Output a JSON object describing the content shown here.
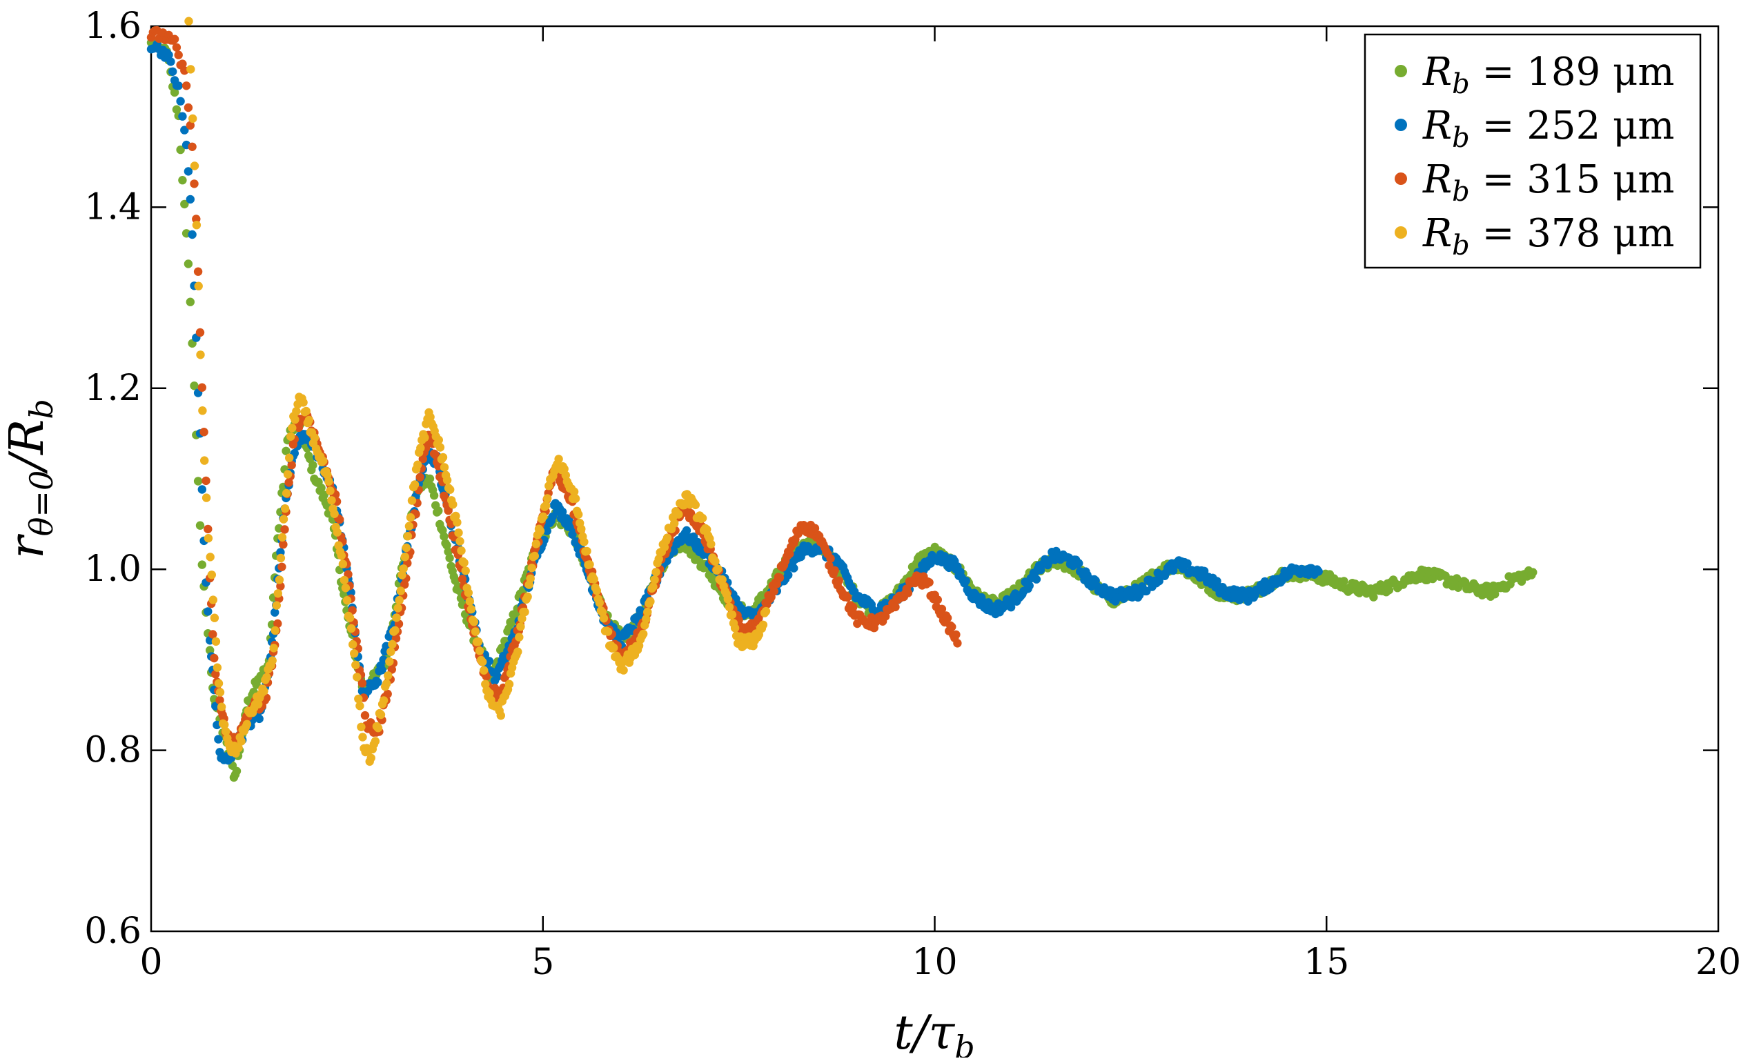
{
  "chart_data": {
    "type": "scatter",
    "xlabel": "t/τ_b",
    "ylabel": "r_{θ=0}/R_b",
    "xlim": [
      0,
      20
    ],
    "ylim": [
      0.6,
      1.6
    ],
    "xticks": [
      0,
      5,
      10,
      15,
      20
    ],
    "xtick_labels": [
      "0",
      "5",
      "10",
      "15",
      "20"
    ],
    "yticks": [
      0.6,
      0.8,
      1.0,
      1.2,
      1.4,
      1.6
    ],
    "ytick_labels": [
      "0.6",
      "0.8",
      "1.0",
      "1.2",
      "1.4",
      "1.6"
    ],
    "grid": false,
    "legend_position": "top-right",
    "series": [
      {
        "name": "R_b = 189 μm",
        "legend": {
          "symbol": "R",
          "sub": "b",
          "value": "= 189 μm"
        },
        "color": "#77ac30",
        "t_end": 17.65,
        "points": [
          [
            0.0,
            1.58
          ],
          [
            0.2,
            1.57
          ],
          [
            0.35,
            1.5
          ],
          [
            0.5,
            1.3
          ],
          [
            0.65,
            1.0
          ],
          [
            0.8,
            0.86
          ],
          [
            0.95,
            0.81
          ],
          [
            1.07,
            0.77
          ],
          [
            1.2,
            0.84
          ],
          [
            1.35,
            0.88
          ],
          [
            1.5,
            0.89
          ],
          [
            1.6,
            1.02
          ],
          [
            1.75,
            1.15
          ],
          [
            1.88,
            1.16
          ],
          [
            2.1,
            1.1
          ],
          [
            2.3,
            1.06
          ],
          [
            2.5,
            0.95
          ],
          [
            2.7,
            0.87
          ],
          [
            2.85,
            0.88
          ],
          [
            3.0,
            0.9
          ],
          [
            3.2,
            1.0
          ],
          [
            3.4,
            1.09
          ],
          [
            3.55,
            1.1
          ],
          [
            3.7,
            1.05
          ],
          [
            3.9,
            0.98
          ],
          [
            4.1,
            0.93
          ],
          [
            4.35,
            0.88
          ],
          [
            4.6,
            0.94
          ],
          [
            4.9,
            1.02
          ],
          [
            5.15,
            1.06
          ],
          [
            5.4,
            1.04
          ],
          [
            5.6,
            0.99
          ],
          [
            5.85,
            0.94
          ],
          [
            6.05,
            0.92
          ],
          [
            6.3,
            0.96
          ],
          [
            6.6,
            1.02
          ],
          [
            6.8,
            1.03
          ],
          [
            7.1,
            1.0
          ],
          [
            7.4,
            0.96
          ],
          [
            7.65,
            0.95
          ],
          [
            7.9,
            0.98
          ],
          [
            8.2,
            1.02
          ],
          [
            8.45,
            1.03
          ],
          [
            8.7,
            1.01
          ],
          [
            9.0,
            0.97
          ],
          [
            9.25,
            0.95
          ],
          [
            9.5,
            0.97
          ],
          [
            9.8,
            1.01
          ],
          [
            10.0,
            1.02
          ],
          [
            10.3,
            1.0
          ],
          [
            10.55,
            0.97
          ],
          [
            10.8,
            0.96
          ],
          [
            11.1,
            0.98
          ],
          [
            11.3,
            1.0
          ],
          [
            11.55,
            1.01
          ],
          [
            11.8,
            1.0
          ],
          [
            12.05,
            0.98
          ],
          [
            12.3,
            0.965
          ],
          [
            12.6,
            0.98
          ],
          [
            12.9,
            1.0
          ],
          [
            13.1,
            1.005
          ],
          [
            13.35,
            0.99
          ],
          [
            13.6,
            0.975
          ],
          [
            13.9,
            0.97
          ],
          [
            14.2,
            0.98
          ],
          [
            14.45,
            0.995
          ],
          [
            14.7,
            0.995
          ],
          [
            15.0,
            0.99
          ],
          [
            15.3,
            0.98
          ],
          [
            15.6,
            0.975
          ],
          [
            15.9,
            0.985
          ],
          [
            16.2,
            0.995
          ],
          [
            16.5,
            0.99
          ],
          [
            16.8,
            0.98
          ],
          [
            17.1,
            0.975
          ],
          [
            17.4,
            0.99
          ],
          [
            17.65,
            0.995
          ]
        ]
      },
      {
        "name": "R_b = 252 μm",
        "legend": {
          "symbol": "R",
          "sub": "b",
          "value": "= 252 μm"
        },
        "color": "#0072bd",
        "t_end": 14.9,
        "points": [
          [
            0.0,
            1.58
          ],
          [
            0.2,
            1.57
          ],
          [
            0.35,
            1.53
          ],
          [
            0.45,
            1.47
          ],
          [
            0.52,
            1.38
          ],
          [
            0.6,
            1.2
          ],
          [
            0.7,
            0.98
          ],
          [
            0.8,
            0.87
          ],
          [
            0.88,
            0.79
          ],
          [
            0.97,
            0.79
          ],
          [
            1.05,
            0.8
          ],
          [
            1.25,
            0.83
          ],
          [
            1.4,
            0.84
          ],
          [
            1.55,
            0.92
          ],
          [
            1.7,
            1.07
          ],
          [
            1.85,
            1.14
          ],
          [
            2.0,
            1.15
          ],
          [
            2.15,
            1.12
          ],
          [
            2.35,
            1.08
          ],
          [
            2.55,
            0.97
          ],
          [
            2.7,
            0.86
          ],
          [
            2.9,
            0.88
          ],
          [
            3.1,
            0.94
          ],
          [
            3.3,
            1.04
          ],
          [
            3.5,
            1.13
          ],
          [
            3.65,
            1.12
          ],
          [
            3.8,
            1.06
          ],
          [
            4.0,
            0.99
          ],
          [
            4.2,
            0.91
          ],
          [
            4.4,
            0.88
          ],
          [
            4.65,
            0.93
          ],
          [
            4.9,
            1.01
          ],
          [
            5.15,
            1.07
          ],
          [
            5.35,
            1.05
          ],
          [
            5.6,
            0.99
          ],
          [
            5.8,
            0.94
          ],
          [
            6.0,
            0.92
          ],
          [
            6.25,
            0.95
          ],
          [
            6.55,
            1.01
          ],
          [
            6.8,
            1.04
          ],
          [
            7.05,
            1.02
          ],
          [
            7.3,
            0.99
          ],
          [
            7.55,
            0.95
          ],
          [
            7.75,
            0.95
          ],
          [
            8.0,
            0.98
          ],
          [
            8.3,
            1.02
          ],
          [
            8.5,
            1.025
          ],
          [
            8.75,
            1.01
          ],
          [
            9.0,
            0.97
          ],
          [
            9.25,
            0.955
          ],
          [
            9.5,
            0.965
          ],
          [
            9.75,
            0.99
          ],
          [
            10.0,
            1.015
          ],
          [
            10.25,
            1.005
          ],
          [
            10.5,
            0.97
          ],
          [
            10.75,
            0.955
          ],
          [
            11.0,
            0.965
          ],
          [
            11.3,
            0.995
          ],
          [
            11.5,
            1.015
          ],
          [
            11.75,
            1.01
          ],
          [
            12.0,
            0.985
          ],
          [
            12.3,
            0.97
          ],
          [
            12.6,
            0.975
          ],
          [
            12.9,
            0.995
          ],
          [
            13.1,
            1.005
          ],
          [
            13.4,
            0.995
          ],
          [
            13.7,
            0.975
          ],
          [
            14.0,
            0.97
          ],
          [
            14.3,
            0.985
          ],
          [
            14.6,
            1.0
          ],
          [
            14.9,
            1.0
          ]
        ]
      },
      {
        "name": "R_b = 315 μm",
        "legend": {
          "symbol": "R",
          "sub": "b",
          "value": "= 315 μm"
        },
        "color": "#d95319",
        "t_end": 10.3,
        "points": [
          [
            0.0,
            1.59
          ],
          [
            0.15,
            1.59
          ],
          [
            0.3,
            1.58
          ],
          [
            0.45,
            1.54
          ],
          [
            0.52,
            1.47
          ],
          [
            0.58,
            1.38
          ],
          [
            0.65,
            1.2
          ],
          [
            0.72,
            1.05
          ],
          [
            0.8,
            0.9
          ],
          [
            0.9,
            0.84
          ],
          [
            1.0,
            0.81
          ],
          [
            1.15,
            0.82
          ],
          [
            1.3,
            0.85
          ],
          [
            1.45,
            0.85
          ],
          [
            1.6,
            0.93
          ],
          [
            1.75,
            1.09
          ],
          [
            1.85,
            1.16
          ],
          [
            2.0,
            1.17
          ],
          [
            2.15,
            1.13
          ],
          [
            2.35,
            1.08
          ],
          [
            2.55,
            0.97
          ],
          [
            2.75,
            0.83
          ],
          [
            2.9,
            0.82
          ],
          [
            3.05,
            0.88
          ],
          [
            3.25,
            0.99
          ],
          [
            3.45,
            1.11
          ],
          [
            3.55,
            1.15
          ],
          [
            3.7,
            1.1
          ],
          [
            3.9,
            1.02
          ],
          [
            4.1,
            0.94
          ],
          [
            4.3,
            0.87
          ],
          [
            4.45,
            0.86
          ],
          [
            4.65,
            0.92
          ],
          [
            4.9,
            1.02
          ],
          [
            5.15,
            1.11
          ],
          [
            5.35,
            1.08
          ],
          [
            5.6,
            1.0
          ],
          [
            5.85,
            0.93
          ],
          [
            6.0,
            0.9
          ],
          [
            6.25,
            0.93
          ],
          [
            6.55,
            1.02
          ],
          [
            6.8,
            1.07
          ],
          [
            7.05,
            1.04
          ],
          [
            7.3,
            0.98
          ],
          [
            7.55,
            0.93
          ],
          [
            7.75,
            0.94
          ],
          [
            8.0,
            0.99
          ],
          [
            8.3,
            1.05
          ],
          [
            8.5,
            1.04
          ],
          [
            8.75,
            0.99
          ],
          [
            9.0,
            0.945
          ],
          [
            9.25,
            0.94
          ],
          [
            9.5,
            0.96
          ],
          [
            9.75,
            0.99
          ],
          [
            9.9,
            0.985
          ],
          [
            10.1,
            0.95
          ],
          [
            10.3,
            0.92
          ]
        ]
      },
      {
        "name": "R_b = 378 μm",
        "legend": {
          "symbol": "R",
          "sub": "b",
          "value": "= 378 μm"
        },
        "color": "#edb120",
        "t_end": 7.85,
        "points": [
          [
            0.48,
            1.6
          ],
          [
            0.52,
            1.52
          ],
          [
            0.56,
            1.44
          ],
          [
            0.6,
            1.33
          ],
          [
            0.64,
            1.2
          ],
          [
            0.68,
            1.12
          ],
          [
            0.72,
            1.05
          ],
          [
            0.78,
            0.98
          ],
          [
            0.85,
            0.89
          ],
          [
            0.92,
            0.83
          ],
          [
            1.0,
            0.8
          ],
          [
            1.1,
            0.8
          ],
          [
            1.25,
            0.84
          ],
          [
            1.4,
            0.86
          ],
          [
            1.55,
            0.9
          ],
          [
            1.7,
            1.06
          ],
          [
            1.8,
            1.16
          ],
          [
            1.9,
            1.19
          ],
          [
            2.05,
            1.15
          ],
          [
            2.25,
            1.1
          ],
          [
            2.45,
            1.0
          ],
          [
            2.6,
            0.9
          ],
          [
            2.7,
            0.81
          ],
          [
            2.8,
            0.79
          ],
          [
            3.0,
            0.87
          ],
          [
            3.2,
            0.99
          ],
          [
            3.4,
            1.12
          ],
          [
            3.55,
            1.17
          ],
          [
            3.7,
            1.13
          ],
          [
            3.9,
            1.05
          ],
          [
            4.1,
            0.95
          ],
          [
            4.3,
            0.86
          ],
          [
            4.45,
            0.84
          ],
          [
            4.65,
            0.9
          ],
          [
            4.9,
            1.02
          ],
          [
            5.1,
            1.1
          ],
          [
            5.2,
            1.12
          ],
          [
            5.4,
            1.08
          ],
          [
            5.6,
            1.0
          ],
          [
            5.85,
            0.92
          ],
          [
            6.0,
            0.89
          ],
          [
            6.25,
            0.92
          ],
          [
            6.5,
            1.02
          ],
          [
            6.75,
            1.07
          ],
          [
            6.85,
            1.08
          ],
          [
            7.05,
            1.05
          ],
          [
            7.3,
            0.98
          ],
          [
            7.5,
            0.92
          ],
          [
            7.7,
            0.92
          ],
          [
            7.85,
            0.95
          ]
        ]
      }
    ]
  }
}
